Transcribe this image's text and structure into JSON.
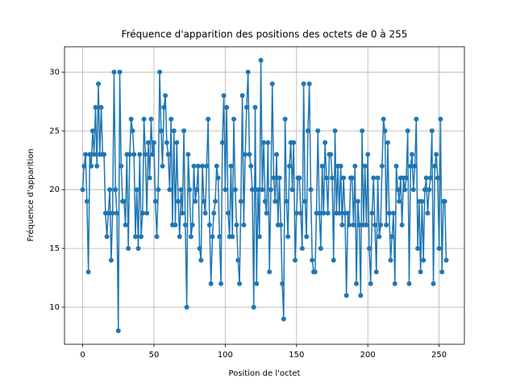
{
  "chart_data": {
    "type": "line",
    "title": "Fréquence d'apparition des positions des octets de 0 à 255",
    "x_label": "Position de l'octet",
    "y_label": "Fréquence d'apparition",
    "x": [
      0,
      1,
      2,
      3,
      4,
      5,
      6,
      7,
      8,
      9,
      10,
      11,
      12,
      13,
      14,
      15,
      16,
      17,
      18,
      19,
      20,
      21,
      22,
      23,
      24,
      25,
      26,
      27,
      28,
      29,
      30,
      31,
      32,
      33,
      34,
      35,
      36,
      37,
      38,
      39,
      40,
      41,
      42,
      43,
      44,
      45,
      46,
      47,
      48,
      49,
      50,
      51,
      52,
      53,
      54,
      55,
      56,
      57,
      58,
      59,
      60,
      61,
      62,
      63,
      64,
      65,
      66,
      67,
      68,
      69,
      70,
      71,
      72,
      73,
      74,
      75,
      76,
      77,
      78,
      79,
      80,
      81,
      82,
      83,
      84,
      85,
      86,
      87,
      88,
      89,
      90,
      91,
      92,
      93,
      94,
      95,
      96,
      97,
      98,
      99,
      100,
      101,
      102,
      103,
      104,
      105,
      106,
      107,
      108,
      109,
      110,
      111,
      112,
      113,
      114,
      115,
      116,
      117,
      118,
      119,
      120,
      121,
      122,
      123,
      124,
      125,
      126,
      127,
      128,
      129,
      130,
      131,
      132,
      133,
      134,
      135,
      136,
      137,
      138,
      139,
      140,
      141,
      142,
      143,
      144,
      145,
      146,
      147,
      148,
      149,
      150,
      151,
      152,
      153,
      154,
      155,
      156,
      157,
      158,
      159,
      160,
      161,
      162,
      163,
      164,
      165,
      166,
      167,
      168,
      169,
      170,
      171,
      172,
      173,
      174,
      175,
      176,
      177,
      178,
      179,
      180,
      181,
      182,
      183,
      184,
      185,
      186,
      187,
      188,
      189,
      190,
      191,
      192,
      193,
      194,
      195,
      196,
      197,
      198,
      199,
      200,
      201,
      202,
      203,
      204,
      205,
      206,
      207,
      208,
      209,
      210,
      211,
      212,
      213,
      214,
      215,
      216,
      217,
      218,
      219,
      220,
      221,
      222,
      223,
      224,
      225,
      226,
      227,
      228,
      229,
      230,
      231,
      232,
      233,
      234,
      235,
      236,
      237,
      238,
      239,
      240,
      241,
      242,
      243,
      244,
      245,
      246,
      247,
      248,
      249,
      250,
      251,
      252,
      253,
      254,
      255
    ],
    "series": [
      {
        "color": "#1f77b4",
        "values": [
          20,
          22,
          23,
          19,
          13,
          23,
          22,
          25,
          23,
          27,
          22,
          29,
          23,
          27,
          23,
          23,
          18,
          16,
          18,
          20,
          14,
          18,
          30,
          20,
          18,
          8,
          30,
          22,
          19,
          19,
          17,
          23,
          15,
          23,
          26,
          25,
          23,
          16,
          20,
          15,
          23,
          16,
          18,
          26,
          23,
          18,
          24,
          21,
          26,
          23,
          24,
          19,
          16,
          20,
          30,
          25,
          22,
          27,
          28,
          24,
          23,
          20,
          26,
          17,
          25,
          17,
          24,
          19,
          16,
          20,
          18,
          25,
          17,
          10,
          23,
          20,
          16,
          17,
          22,
          19,
          20,
          22,
          15,
          14,
          22,
          19,
          18,
          22,
          26,
          17,
          12,
          16,
          18,
          19,
          22,
          21,
          16,
          12,
          24,
          28,
          20,
          27,
          18,
          16,
          22,
          16,
          26,
          20,
          17,
          14,
          12,
          19,
          28,
          17,
          23,
          27,
          30,
          23,
          22,
          20,
          10,
          27,
          12,
          20,
          16,
          31,
          20,
          24,
          19,
          18,
          24,
          13,
          20,
          29,
          21,
          19,
          23,
          17,
          21,
          17,
          12,
          9,
          26,
          19,
          16,
          22,
          24,
          20,
          24,
          14,
          18,
          21,
          21,
          18,
          15,
          29,
          19,
          16,
          25,
          29,
          20,
          14,
          13,
          13,
          18,
          25,
          18,
          15,
          22,
          18,
          24,
          21,
          18,
          23,
          23,
          21,
          14,
          25,
          18,
          22,
          18,
          22,
          17,
          21,
          18,
          11,
          18,
          17,
          21,
          21,
          17,
          22,
          12,
          19,
          17,
          11,
          25,
          17,
          22,
          17,
          23,
          15,
          12,
          18,
          21,
          17,
          13,
          21,
          16,
          17,
          22,
          26,
          25,
          17,
          24,
          18,
          14,
          16,
          18,
          12,
          22,
          20,
          19,
          21,
          17,
          21,
          20,
          21,
          25,
          12,
          22,
          23,
          20,
          22,
          26,
          15,
          19,
          13,
          19,
          14,
          20,
          21,
          18,
          20,
          21,
          25,
          12,
          22,
          23,
          21,
          15,
          26,
          13,
          19,
          19,
          14
        ]
      }
    ],
    "xlim": [
      -12.75,
      267.75
    ],
    "ylim": [
      6.85,
      32.15
    ],
    "xticks": [
      0,
      50,
      100,
      150,
      200,
      250
    ],
    "yticks": [
      10,
      15,
      20,
      25,
      30
    ],
    "grid": true
  }
}
